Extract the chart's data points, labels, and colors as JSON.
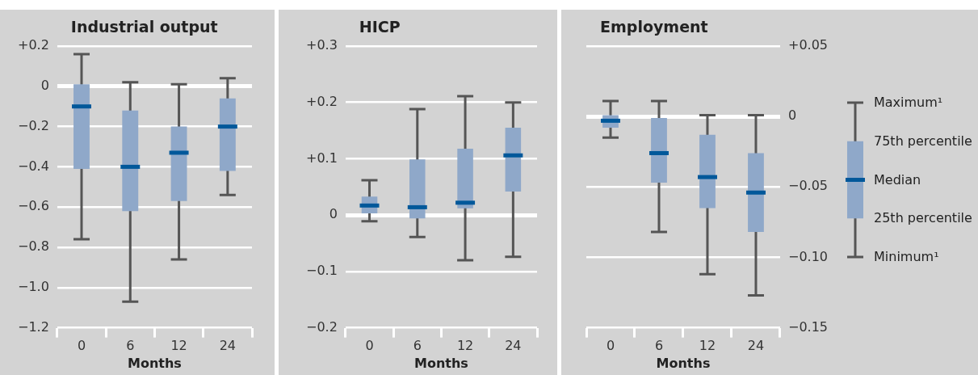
{
  "chart_data": [
    {
      "type": "box",
      "title": "Industrial output",
      "xlabel": "Months",
      "categories": [
        "0",
        "6",
        "12",
        "24"
      ],
      "ylim": [
        -1.2,
        0.2
      ],
      "yticks": [
        {
          "value": 0.2,
          "label": "+0.2"
        },
        {
          "value": 0,
          "label": "0"
        },
        {
          "value": -0.2,
          "label": "−0.2"
        },
        {
          "value": -0.4,
          "label": "−0.4"
        },
        {
          "value": -0.6,
          "label": "−0.6"
        },
        {
          "value": -0.8,
          "label": "−0.8"
        },
        {
          "value": -1.0,
          "label": "−1.0"
        },
        {
          "value": -1.2,
          "label": "−1.2"
        }
      ],
      "grid": "y",
      "series": [
        {
          "color": "#8fa8c9",
          "boxes": [
            {
              "low": -0.76,
              "q1": -0.41,
              "median": -0.1,
              "q3": 0.01,
              "high": 0.16
            },
            {
              "low": -1.07,
              "q1": -0.62,
              "median": -0.4,
              "q3": -0.12,
              "high": 0.02
            },
            {
              "low": -0.86,
              "q1": -0.57,
              "median": -0.33,
              "q3": -0.2,
              "high": 0.01
            },
            {
              "low": -0.54,
              "q1": -0.42,
              "median": -0.2,
              "q3": -0.06,
              "high": 0.04
            }
          ]
        }
      ]
    },
    {
      "type": "box",
      "title": "HICP",
      "xlabel": "Months",
      "categories": [
        "0",
        "6",
        "12",
        "24"
      ],
      "ylim": [
        -0.2,
        0.3
      ],
      "yticks": [
        {
          "value": 0.3,
          "label": "+0.3"
        },
        {
          "value": 0.2,
          "label": "+0.2"
        },
        {
          "value": 0.1,
          "label": "+0.1"
        },
        {
          "value": 0,
          "label": "0"
        },
        {
          "value": -0.1,
          "label": "−0.1"
        },
        {
          "value": -0.2,
          "label": "−0.2"
        }
      ],
      "grid": "y",
      "series": [
        {
          "color": "#8fa8c9",
          "boxes": [
            {
              "low": -0.011,
              "q1": 0.003,
              "median": 0.017,
              "q3": 0.033,
              "high": 0.062
            },
            {
              "low": -0.039,
              "q1": -0.006,
              "median": 0.014,
              "q3": 0.099,
              "high": 0.188
            },
            {
              "low": -0.08,
              "q1": 0.012,
              "median": 0.022,
              "q3": 0.118,
              "high": 0.211
            },
            {
              "low": -0.074,
              "q1": 0.042,
              "median": 0.106,
              "q3": 0.155,
              "high": 0.2
            }
          ]
        }
      ]
    },
    {
      "type": "box",
      "title": "Employment",
      "xlabel": "Months",
      "categories": [
        "0",
        "6",
        "12",
        "24"
      ],
      "ylim": [
        -0.15,
        0.05
      ],
      "yticks": [
        {
          "value": 0.05,
          "label": "+0.05"
        },
        {
          "value": 0,
          "label": "0"
        },
        {
          "value": -0.05,
          "label": "−0.05"
        },
        {
          "value": -0.1,
          "label": "−0.10"
        },
        {
          "value": -0.15,
          "label": "−0.15"
        }
      ],
      "grid": "y",
      "annotations": [
        "Maximum¹",
        "75th percentile",
        "Median",
        "25th percentile",
        "Minimum¹"
      ],
      "series": [
        {
          "color": "#8fa8c9",
          "boxes": [
            {
              "low": -0.015,
              "q1": -0.008,
              "median": -0.003,
              "q3": 0.001,
              "high": 0.011
            },
            {
              "low": -0.082,
              "q1": -0.047,
              "median": -0.026,
              "q3": -0.001,
              "high": 0.011
            },
            {
              "low": -0.112,
              "q1": -0.065,
              "median": -0.043,
              "q3": -0.013,
              "high": 0.001
            },
            {
              "low": -0.127,
              "q1": -0.082,
              "median": -0.054,
              "q3": -0.026,
              "high": 0.001
            }
          ]
        }
      ]
    }
  ]
}
